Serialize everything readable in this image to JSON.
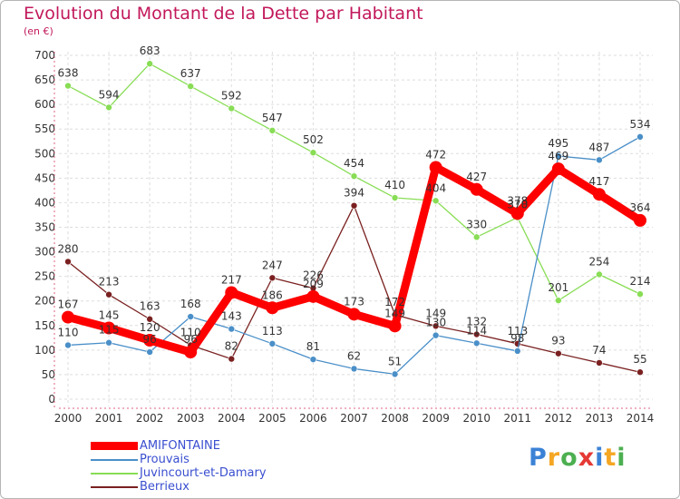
{
  "chart_data": {
    "type": "line",
    "title": "Evolution du Montant de la Dette par Habitant",
    "subtitle": "(en €)",
    "x": [
      "2000",
      "2001",
      "2002",
      "2003",
      "2004",
      "2005",
      "2006",
      "2007",
      "2008",
      "2009",
      "2010",
      "2011",
      "2012",
      "2013",
      "2014"
    ],
    "ylim": [
      0,
      700
    ],
    "yticks": [
      0,
      50,
      100,
      150,
      200,
      250,
      300,
      350,
      400,
      450,
      500,
      550,
      600,
      650,
      700
    ],
    "grid": true,
    "legend_position": "bottom-left",
    "series": [
      {
        "name": "AMIFONTAINE",
        "color": "#ff0000",
        "values": [
          167,
          145,
          120,
          96,
          217,
          186,
          209,
          173,
          149,
          472,
          427,
          378,
          469,
          417,
          364
        ]
      },
      {
        "name": "Prouvais",
        "color": "#4a8fc8",
        "values": [
          110,
          115,
          96,
          168,
          143,
          113,
          81,
          62,
          51,
          130,
          114,
          98,
          495,
          487,
          534
        ]
      },
      {
        "name": "Juvincourt-et-Damary",
        "color": "#88dd55",
        "values": [
          638,
          594,
          683,
          637,
          592,
          547,
          502,
          454,
          410,
          404,
          330,
          370,
          201,
          254,
          214
        ]
      },
      {
        "name": "Berrieux",
        "color": "#7a2020",
        "values": [
          280,
          213,
          163,
          110,
          82,
          247,
          226,
          394,
          172,
          149,
          132,
          113,
          93,
          74,
          55
        ]
      }
    ]
  },
  "logo": {
    "letters": [
      "P",
      "r",
      "o",
      "x",
      "i",
      "t",
      "i"
    ],
    "colors": [
      "#3b82d6",
      "#f5a623",
      "#4caf50",
      "#e53935",
      "#3b82d6",
      "#f5a623",
      "#4caf50"
    ]
  }
}
